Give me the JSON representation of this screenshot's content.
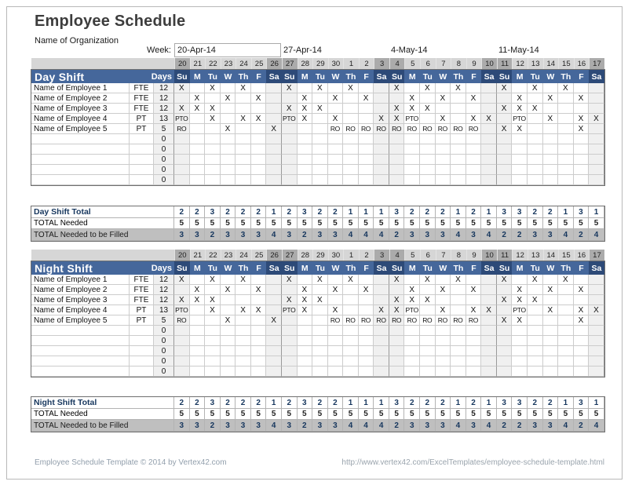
{
  "page": {
    "title": "Employee Schedule",
    "organization": "Name of Organization",
    "week_label": "Week:",
    "week_dates": [
      "20-Apr-14",
      "27-Apr-14",
      "4-May-14",
      "11-May-14"
    ]
  },
  "calendar": {
    "day_numbers": [
      "20",
      "21",
      "22",
      "23",
      "24",
      "25",
      "26",
      "27",
      "28",
      "29",
      "30",
      "1",
      "2",
      "3",
      "4",
      "5",
      "6",
      "7",
      "8",
      "9",
      "10",
      "11",
      "12",
      "13",
      "14",
      "15",
      "16",
      "17"
    ],
    "day_names": [
      "Su",
      "M",
      "Tu",
      "W",
      "Th",
      "F",
      "Sa",
      "Su",
      "M",
      "Tu",
      "W",
      "Th",
      "F",
      "Sa",
      "Su",
      "M",
      "Tu",
      "W",
      "Th",
      "F",
      "Sa",
      "Su",
      "M",
      "Tu",
      "W",
      "Th",
      "F",
      "Sa"
    ],
    "weekend_columns": [
      0,
      6,
      7,
      13,
      14,
      20,
      21,
      27
    ],
    "week_start_columns": [
      0,
      7,
      14,
      21
    ]
  },
  "shifts": [
    {
      "id": "day",
      "title": "Day Shift",
      "days_label": "Days",
      "employees": [
        {
          "name": "Name of Employee 1",
          "type": "FTE",
          "days": "12",
          "marks": [
            "X",
            "",
            "X",
            "",
            "X",
            "",
            "",
            "X",
            "",
            "X",
            "",
            "X",
            "",
            "",
            "X",
            "",
            "X",
            "",
            "X",
            "",
            "",
            "X",
            "",
            "X",
            "",
            "X",
            "",
            ""
          ]
        },
        {
          "name": "Name of Employee 2",
          "type": "FTE",
          "days": "12",
          "marks": [
            "",
            "X",
            "",
            "X",
            "",
            "X",
            "",
            "",
            "X",
            "",
            "X",
            "",
            "X",
            "",
            "",
            "X",
            "",
            "X",
            "",
            "X",
            "",
            "",
            "X",
            "",
            "X",
            "",
            "X",
            ""
          ]
        },
        {
          "name": "Name of Employee 3",
          "type": "FTE",
          "days": "12",
          "marks": [
            "X",
            "X",
            "X",
            "",
            "",
            "",
            "",
            "X",
            "X",
            "X",
            "",
            "",
            "",
            "",
            "X",
            "X",
            "X",
            "",
            "",
            "",
            "",
            "X",
            "X",
            "X",
            "",
            "",
            "",
            ""
          ]
        },
        {
          "name": "Name of Employee 4",
          "type": "PT",
          "days": "13",
          "marks": [
            "PTO",
            "",
            "X",
            "",
            "X",
            "X",
            "",
            "PTO",
            "X",
            "",
            "X",
            "",
            "",
            "X",
            "X",
            "PTO",
            "",
            "X",
            "",
            "X",
            "X",
            "",
            "PTO",
            "",
            "X",
            "",
            "X",
            "X"
          ]
        },
        {
          "name": "Name of Employee 5",
          "type": "PT",
          "days": "5",
          "marks": [
            "RO",
            "",
            "",
            "X",
            "",
            "",
            "X",
            "",
            "",
            "",
            "RO",
            "RO",
            "RO",
            "RO",
            "RO",
            "RO",
            "RO",
            "RO",
            "RO",
            "RO",
            "",
            "X",
            "X",
            "",
            "",
            "",
            "X",
            ""
          ]
        }
      ],
      "empty_row_days": [
        "0",
        "0",
        "0",
        "0",
        "0"
      ],
      "totals": {
        "title": "Day Shift Total",
        "scheduled": [
          "2",
          "2",
          "3",
          "2",
          "2",
          "2",
          "1",
          "2",
          "3",
          "2",
          "2",
          "1",
          "1",
          "1",
          "3",
          "2",
          "2",
          "2",
          "1",
          "2",
          "1",
          "3",
          "3",
          "2",
          "2",
          "1",
          "3",
          "1"
        ],
        "needed_label": "TOTAL Needed",
        "needed": [
          "5",
          "5",
          "5",
          "5",
          "5",
          "5",
          "5",
          "5",
          "5",
          "5",
          "5",
          "5",
          "5",
          "5",
          "5",
          "5",
          "5",
          "5",
          "5",
          "5",
          "5",
          "5",
          "5",
          "5",
          "5",
          "5",
          "5",
          "5"
        ],
        "filled_label": "TOTAL Needed to be Filled",
        "filled": [
          "3",
          "3",
          "2",
          "3",
          "3",
          "3",
          "4",
          "3",
          "2",
          "3",
          "3",
          "4",
          "4",
          "4",
          "2",
          "3",
          "3",
          "3",
          "4",
          "3",
          "4",
          "2",
          "2",
          "3",
          "3",
          "4",
          "2",
          "4"
        ]
      }
    },
    {
      "id": "night",
      "title": "Night Shift",
      "days_label": "Days",
      "employees": [
        {
          "name": "Name of Employee 1",
          "type": "FTE",
          "days": "12",
          "marks": [
            "X",
            "",
            "X",
            "",
            "X",
            "",
            "",
            "X",
            "",
            "X",
            "",
            "X",
            "",
            "",
            "X",
            "",
            "X",
            "",
            "X",
            "",
            "",
            "X",
            "",
            "X",
            "",
            "X",
            "",
            ""
          ]
        },
        {
          "name": "Name of Employee 2",
          "type": "FTE",
          "days": "12",
          "marks": [
            "",
            "X",
            "",
            "X",
            "",
            "X",
            "",
            "",
            "X",
            "",
            "X",
            "",
            "X",
            "",
            "",
            "X",
            "",
            "X",
            "",
            "X",
            "",
            "",
            "X",
            "",
            "X",
            "",
            "X",
            ""
          ]
        },
        {
          "name": "Name of Employee 3",
          "type": "FTE",
          "days": "12",
          "marks": [
            "X",
            "X",
            "X",
            "",
            "",
            "",
            "",
            "X",
            "X",
            "X",
            "",
            "",
            "",
            "",
            "X",
            "X",
            "X",
            "",
            "",
            "",
            "",
            "X",
            "X",
            "X",
            "",
            "",
            "",
            ""
          ]
        },
        {
          "name": "Name of Employee 4",
          "type": "PT",
          "days": "13",
          "marks": [
            "PTO",
            "",
            "X",
            "",
            "X",
            "X",
            "",
            "PTO",
            "X",
            "",
            "X",
            "",
            "",
            "X",
            "X",
            "PTO",
            "",
            "X",
            "",
            "X",
            "X",
            "",
            "PTO",
            "",
            "X",
            "",
            "X",
            "X"
          ]
        },
        {
          "name": "Name of Employee 5",
          "type": "PT",
          "days": "5",
          "marks": [
            "RO",
            "",
            "",
            "X",
            "",
            "",
            "X",
            "",
            "",
            "",
            "RO",
            "RO",
            "RO",
            "RO",
            "RO",
            "RO",
            "RO",
            "RO",
            "RO",
            "RO",
            "",
            "X",
            "X",
            "",
            "",
            "",
            "X",
            ""
          ]
        }
      ],
      "empty_row_days": [
        "0",
        "0",
        "0",
        "0",
        "0"
      ],
      "totals": {
        "title": "Night Shift Total",
        "scheduled": [
          "2",
          "2",
          "3",
          "2",
          "2",
          "2",
          "1",
          "2",
          "3",
          "2",
          "2",
          "1",
          "1",
          "1",
          "3",
          "2",
          "2",
          "2",
          "1",
          "2",
          "1",
          "3",
          "3",
          "2",
          "2",
          "1",
          "3",
          "1"
        ],
        "needed_label": "TOTAL Needed",
        "needed": [
          "5",
          "5",
          "5",
          "5",
          "5",
          "5",
          "5",
          "5",
          "5",
          "5",
          "5",
          "5",
          "5",
          "5",
          "5",
          "5",
          "5",
          "5",
          "5",
          "5",
          "5",
          "5",
          "5",
          "5",
          "5",
          "5",
          "5",
          "5"
        ],
        "filled_label": "TOTAL Needed to be Filled",
        "filled": [
          "3",
          "3",
          "2",
          "3",
          "3",
          "3",
          "4",
          "3",
          "2",
          "3",
          "3",
          "4",
          "4",
          "4",
          "2",
          "3",
          "3",
          "3",
          "4",
          "3",
          "4",
          "2",
          "2",
          "3",
          "3",
          "4",
          "2",
          "4"
        ]
      }
    }
  ],
  "footer": {
    "left": "Employee Schedule Template © 2014 by Vertex42.com",
    "right": "http://www.vertex42.com/ExcelTemplates/employee-schedule-template.html"
  },
  "colors": {
    "header_blue": "#45679b",
    "weekend_blue": "#2d4a78",
    "strip_gray": "#d6d6d6",
    "strip_weekend": "#ababab",
    "weekend_col": "#f0f0f0",
    "silver_row": "#bfbfbf",
    "navy": "#17375e"
  }
}
